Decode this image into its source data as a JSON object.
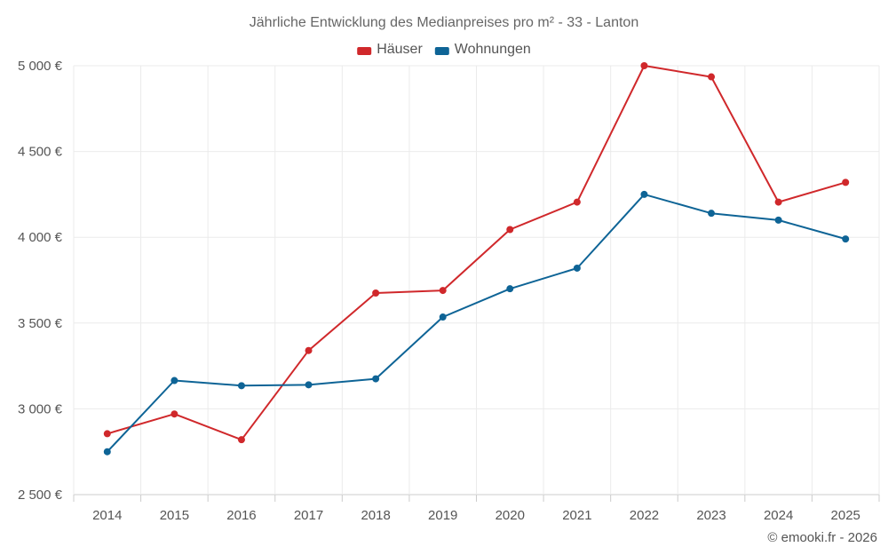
{
  "chart_data": {
    "type": "line",
    "title": "Jährliche Entwicklung des Medianpreises pro m² - 33 - Lanton",
    "categories": [
      "2014",
      "2015",
      "2016",
      "2017",
      "2018",
      "2019",
      "2020",
      "2021",
      "2022",
      "2023",
      "2024",
      "2025"
    ],
    "series": [
      {
        "name": "Häuser",
        "color": "#d0282b",
        "values": [
          2855,
          2970,
          2820,
          3340,
          3675,
          3690,
          4045,
          4205,
          5000,
          4935,
          4205,
          4320
        ]
      },
      {
        "name": "Wohnungen",
        "color": "#0e6496",
        "values": [
          2750,
          3165,
          3135,
          3140,
          3175,
          3535,
          3700,
          3820,
          4250,
          4140,
          4100,
          3990
        ]
      }
    ],
    "ylim": [
      2500,
      5000
    ],
    "yticks": [
      2500,
      3000,
      3500,
      4000,
      4500,
      5000
    ],
    "ytick_labels": [
      "2 500 €",
      "3 000 €",
      "3 500 €",
      "4 000 €",
      "4 500 €",
      "5 000 €"
    ],
    "xlabel": "",
    "ylabel": "",
    "grid": true,
    "legend_position": "top-center"
  },
  "credit": "© emooki.fr - 2026"
}
